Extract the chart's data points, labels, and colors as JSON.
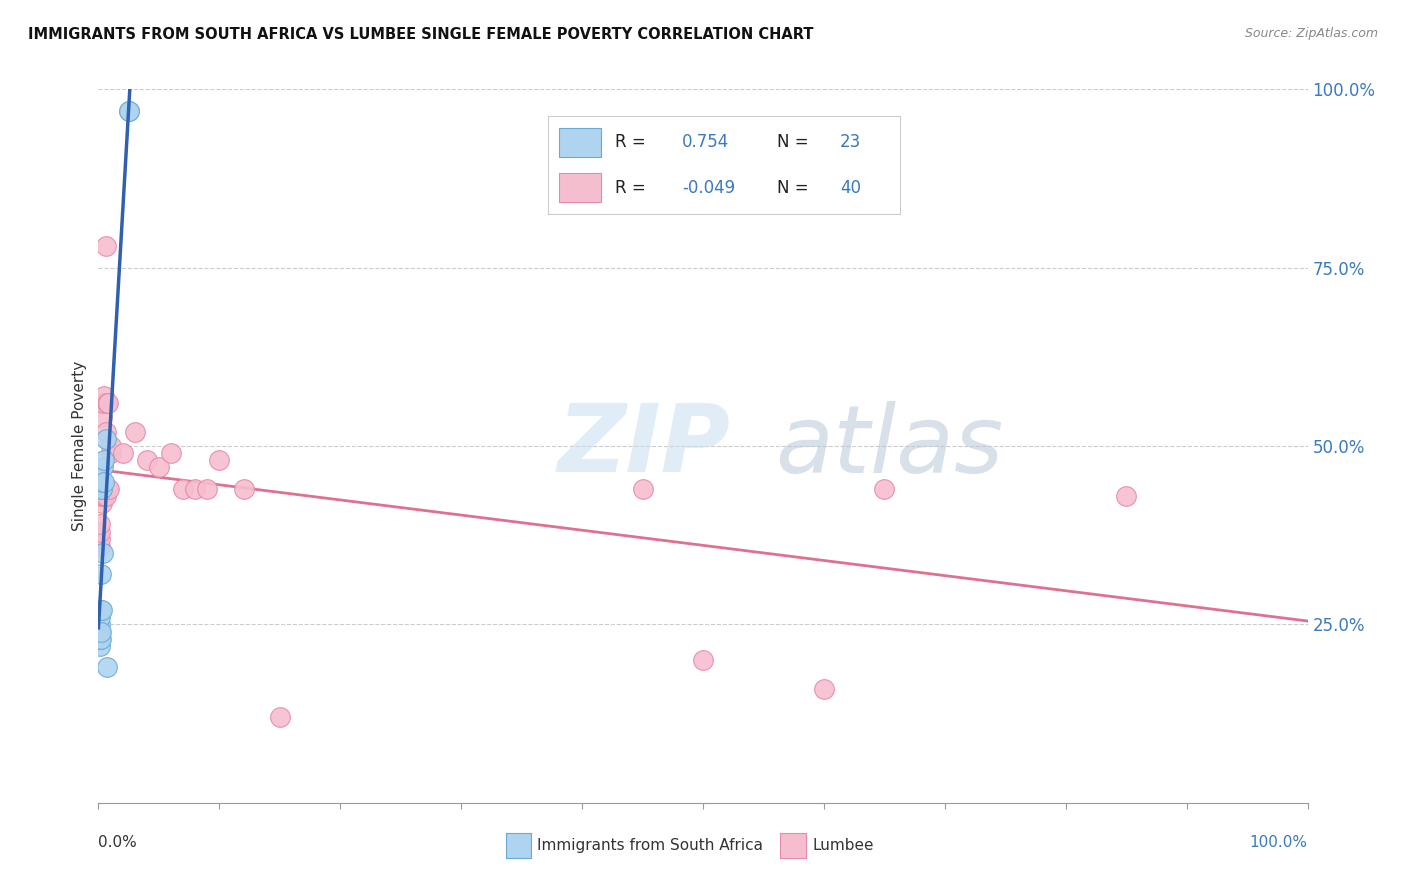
{
  "title": "IMMIGRANTS FROM SOUTH AFRICA VS LUMBEE SINGLE FEMALE POVERTY CORRELATION CHART",
  "source": "Source: ZipAtlas.com",
  "ylabel": "Single Female Poverty",
  "r_blue": 0.754,
  "n_blue": 23,
  "r_pink": -0.049,
  "n_pink": 40,
  "blue_scatter_color": "#aed4f0",
  "blue_edge_color": "#6aaad4",
  "pink_scatter_color": "#f5bece",
  "pink_edge_color": "#e888aa",
  "blue_line_color": "#3060b0",
  "pink_line_color": "#e07090",
  "watermark_color": "#d0e0f0",
  "blue_points_x": [
    0.001,
    0.001,
    0.001,
    0.001,
    0.001,
    0.001,
    0.001,
    0.002,
    0.002,
    0.002,
    0.002,
    0.002,
    0.003,
    0.003,
    0.003,
    0.004,
    0.004,
    0.005,
    0.005,
    0.006,
    0.007,
    0.025,
    0.025
  ],
  "blue_points_y": [
    0.22,
    0.23,
    0.23,
    0.24,
    0.25,
    0.26,
    0.27,
    0.23,
    0.24,
    0.27,
    0.32,
    0.44,
    0.27,
    0.44,
    0.45,
    0.35,
    0.47,
    0.45,
    0.48,
    0.51,
    0.19,
    0.97,
    0.97
  ],
  "pink_points_x": [
    0.001,
    0.001,
    0.001,
    0.001,
    0.002,
    0.002,
    0.003,
    0.003,
    0.003,
    0.003,
    0.004,
    0.004,
    0.005,
    0.005,
    0.006,
    0.006,
    0.006,
    0.007,
    0.007,
    0.008,
    0.008,
    0.009,
    0.01,
    0.01,
    0.02,
    0.03,
    0.04,
    0.05,
    0.06,
    0.07,
    0.08,
    0.09,
    0.1,
    0.12,
    0.15,
    0.45,
    0.5,
    0.6,
    0.65,
    0.85
  ],
  "pink_points_y": [
    0.36,
    0.37,
    0.38,
    0.39,
    0.43,
    0.44,
    0.42,
    0.43,
    0.44,
    0.54,
    0.43,
    0.56,
    0.43,
    0.57,
    0.43,
    0.52,
    0.78,
    0.44,
    0.56,
    0.44,
    0.56,
    0.44,
    0.49,
    0.5,
    0.49,
    0.52,
    0.48,
    0.47,
    0.49,
    0.44,
    0.44,
    0.44,
    0.48,
    0.44,
    0.12,
    0.44,
    0.2,
    0.16,
    0.44,
    0.43
  ],
  "xlim": [
    0.0,
    1.0
  ],
  "ylim": [
    0.0,
    1.0
  ]
}
